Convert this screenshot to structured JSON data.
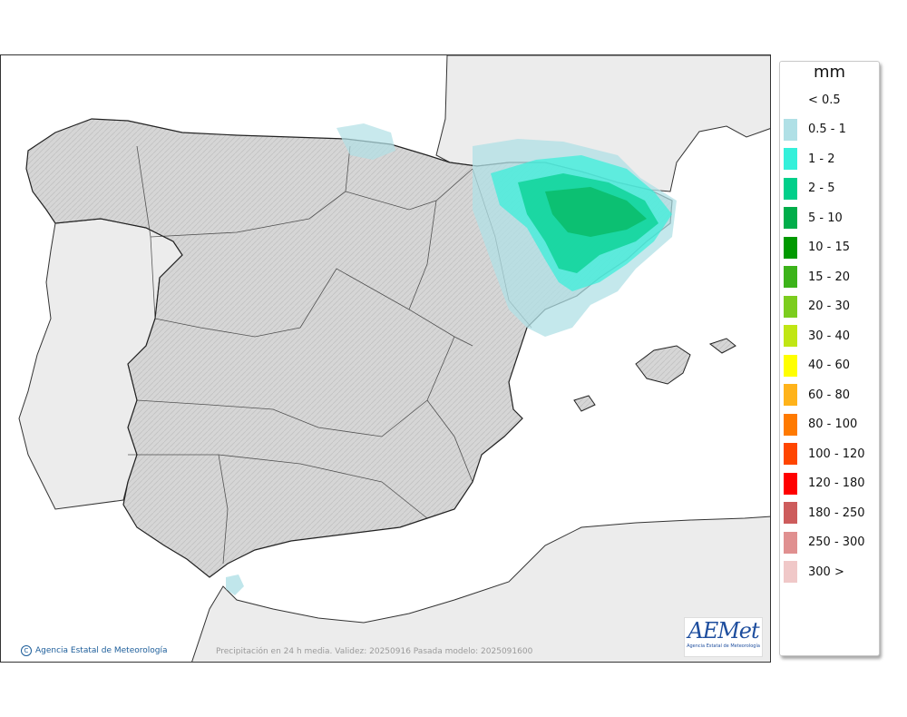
{
  "legend": {
    "title": "mm",
    "items": [
      {
        "label": "< 0.5",
        "color": ""
      },
      {
        "label": "0.5 - 1",
        "color": "#b0e0e6"
      },
      {
        "label": "1 - 2",
        "color": "#34f0da"
      },
      {
        "label": "2 - 5",
        "color": "#00cf8a"
      },
      {
        "label": "5 - 10",
        "color": "#00ad4a"
      },
      {
        "label": "10 - 15",
        "color": "#009900"
      },
      {
        "label": "15 - 20",
        "color": "#3cb31a"
      },
      {
        "label": "20 - 30",
        "color": "#7ccd1e"
      },
      {
        "label": "30 - 40",
        "color": "#c0e614"
      },
      {
        "label": "40 - 60",
        "color": "#ffff00"
      },
      {
        "label": "60 - 80",
        "color": "#ffb31a"
      },
      {
        "label": "80 - 100",
        "color": "#ff7a00"
      },
      {
        "label": "100 - 120",
        "color": "#ff4500"
      },
      {
        "label": "120 - 180",
        "color": "#ff0000"
      },
      {
        "label": "180 - 250",
        "color": "#cd5c5c"
      },
      {
        "label": "250 - 300",
        "color": "#e09090"
      },
      {
        "label": "300 >",
        "color": "#f0c8c8"
      }
    ]
  },
  "map": {
    "credit": "Agencia Estatal de Meteorología",
    "caption": "Precipitación en 24 h media. Validez: 20250916 Pasada modelo: 2025091600",
    "logo_text": "AEMet",
    "logo_subtitle": "Agencia Estatal de Meteorología",
    "land_color": "#d9d9d9",
    "sea_color": "#ffffff",
    "foreign_land_color": "#ececec",
    "border_color": "#222222"
  }
}
